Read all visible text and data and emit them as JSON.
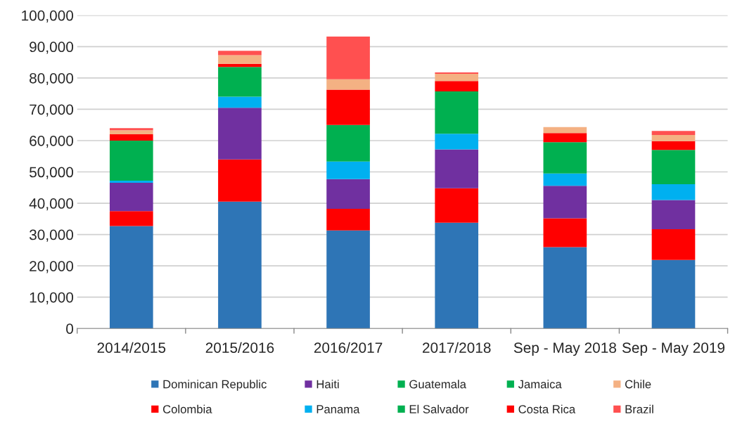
{
  "chart_data": {
    "type": "bar",
    "stacked": true,
    "categories": [
      "2014/2015",
      "2015/2016",
      "2016/2017",
      "2017/2018",
      "Sep - May 2018",
      "Sep - May 2019"
    ],
    "series": [
      {
        "name": "Dominican Republic",
        "color": "#2e75b6",
        "values": [
          32700,
          40500,
          31300,
          33800,
          26000,
          21900
        ]
      },
      {
        "name": "Colombia",
        "color": "#ff0000",
        "values": [
          4800,
          13500,
          6900,
          11000,
          9200,
          9800
        ]
      },
      {
        "name": "Haiti",
        "color": "#7030a0",
        "values": [
          9000,
          16500,
          9500,
          12400,
          10400,
          9300
        ]
      },
      {
        "name": "Panama",
        "color": "#00b0f0",
        "values": [
          700,
          3500,
          5600,
          5000,
          3900,
          5100
        ]
      },
      {
        "name": "Guatemala",
        "color": "#00b050",
        "values": [
          12800,
          9500,
          11700,
          13500,
          10000,
          10900
        ]
      },
      {
        "name": "El Salvador",
        "color": "#00b050",
        "values": [
          0,
          0,
          0,
          0,
          0,
          0
        ]
      },
      {
        "name": "Jamaica",
        "color": "#00b050",
        "values": [
          0,
          0,
          0,
          0,
          0,
          0
        ]
      },
      {
        "name": "Costa Rica",
        "color": "#ff0000",
        "values": [
          2000,
          1000,
          11300,
          3300,
          2900,
          2800
        ]
      },
      {
        "name": "Chile",
        "color": "#f4b183",
        "values": [
          1300,
          2800,
          3300,
          2300,
          1900,
          2000
        ]
      },
      {
        "name": "Brazil",
        "color": "#ff5050",
        "values": [
          700,
          1400,
          13600,
          500,
          0,
          1300
        ]
      }
    ],
    "ylim": [
      0,
      100000
    ],
    "yticks": [
      0,
      {
        "value": 10000,
        "label": "10,000"
      },
      {
        "value": 20000,
        "label": "20,000"
      },
      {
        "value": 30000,
        "label": "30,000"
      },
      {
        "value": 40000,
        "label": "40,000"
      },
      {
        "value": 50000,
        "label": "50,000"
      },
      {
        "value": 60000,
        "label": "60,000"
      },
      {
        "value": 70000,
        "label": "70,000"
      },
      {
        "value": 80000,
        "label": "80,000"
      },
      {
        "value": 90000,
        "label": "90,000"
      },
      {
        "value": 100000,
        "label": "100,000"
      }
    ],
    "grid": "y",
    "legend": "bottom"
  }
}
